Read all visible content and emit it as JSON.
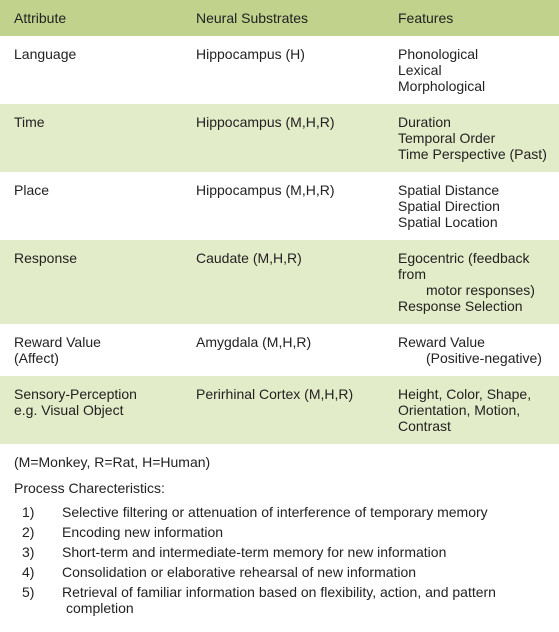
{
  "colors": {
    "header_bg": "#c1d28d",
    "band_light": "#ffffff",
    "band_dark": "#e3ecc8",
    "text": "#222222"
  },
  "table": {
    "headers": {
      "attribute": "Attribute",
      "substrates": "Neural Substrates",
      "features": "Features"
    },
    "rows": [
      {
        "band": "light",
        "attribute_lines": [
          "Language"
        ],
        "substrates": "Hippocampus (H)",
        "features_lines": [
          "Phonological",
          "Lexical",
          "Morphological"
        ]
      },
      {
        "band": "dark",
        "attribute_lines": [
          "Time"
        ],
        "substrates": "Hippocampus (M,H,R)",
        "features_lines": [
          "Duration",
          "Temporal Order",
          "Time Perspective (Past)"
        ]
      },
      {
        "band": "light",
        "attribute_lines": [
          " Place"
        ],
        "substrates": "Hippocampus (M,H,R)",
        "features_lines": [
          "Spatial Distance",
          "Spatial Direction",
          "Spatial Location"
        ]
      },
      {
        "band": "dark",
        "attribute_lines": [
          "Response"
        ],
        "substrates": "Caudate (M,H,R)",
        "features_lines": [
          "Egocentric (feedback from",
          "      motor responses)",
          "Response Selection"
        ],
        "features_sub_indices": [
          1
        ]
      },
      {
        "band": "light",
        "attribute_lines": [
          "Reward Value",
          "(Affect)"
        ],
        "substrates": "Amygdala (M,H,R)",
        "features_lines": [
          "Reward Value",
          "      (Positive-negative)"
        ],
        "features_sub_indices": [
          1
        ]
      },
      {
        "band": "dark",
        "attribute_lines": [
          "Sensory-Perception",
          "e.g. Visual Object"
        ],
        "substrates": "Perirhinal Cortex (M,H,R)",
        "features_lines": [
          "Height, Color, Shape,",
          "Orientation, Motion, Contrast"
        ]
      }
    ]
  },
  "legend": "(M=Monkey, R=Rat, H=Human)",
  "process": {
    "title": "Process Charecteristics:",
    "items": [
      "Selective filtering or attenuation of interference of temporary memory",
      "Encoding new information",
      "Short-term and intermediate-term memory for new information",
      "Consolidation or elaborative rehearsal of new information",
      "Retrieval of familiar information based on flexibility, action, and pattern completion"
    ]
  }
}
